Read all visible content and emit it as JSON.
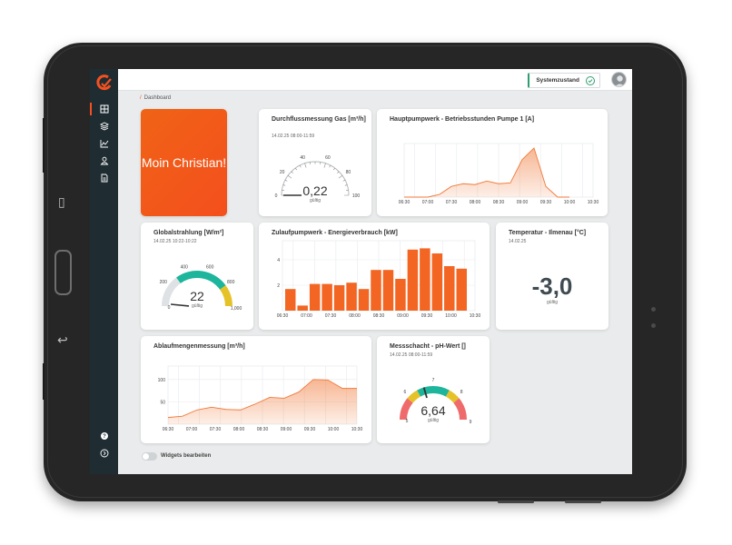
{
  "header": {
    "system_status": "Systemzustand"
  },
  "breadcrumb": {
    "label": "Dashboard"
  },
  "welcome": {
    "text": "Moin Christian!"
  },
  "gas": {
    "title": "Durchflussmessung Gas [m³/h]",
    "time": "14.02.25 08:00-11:59",
    "value": "0,22",
    "valid": "gültig",
    "ticks": [
      "0",
      "20",
      "40",
      "60",
      "80",
      "100"
    ]
  },
  "pump_hours": {
    "title": "Hauptpumpwerk - Betriebsstunden Pumpe 1 [A]",
    "x_ticks": [
      "06:30",
      "07:00",
      "07:30",
      "08:00",
      "08:30",
      "09:00",
      "09:30",
      "10:00",
      "10:30"
    ]
  },
  "global_radiation": {
    "title": "Globalstrahlung [W/m²]",
    "time": "14.02.25 10:22-10:22",
    "value": "22",
    "valid": "gültig",
    "ticks": [
      "0",
      "200",
      "400",
      "600",
      "800",
      "1,000"
    ]
  },
  "energy": {
    "title": "Zulaufpumpwerk - Energieverbrauch [kW]",
    "y_ticks": [
      "2",
      "4"
    ],
    "x_ticks": [
      "06:30",
      "07:00",
      "07:30",
      "08:00",
      "08:30",
      "09:00",
      "09:30",
      "10:00",
      "10:30"
    ]
  },
  "temperature": {
    "title": "Temperatur - Ilmenau [°C]",
    "time": "14.02.25",
    "value": "-3,0",
    "valid": "gültig"
  },
  "outflow": {
    "title": "Ablaufmengenmessung [m³/h]",
    "y_ticks": [
      "50",
      "100"
    ],
    "x_ticks": [
      "06:30",
      "07:00",
      "07:30",
      "08:00",
      "08:30",
      "09:00",
      "09:30",
      "10:00",
      "10:30"
    ]
  },
  "ph": {
    "title": "Messschacht - pH-Wert []",
    "time": "14.02.25 08:00-11:59",
    "value": "6,64",
    "valid": "gültig",
    "ticks": [
      "5",
      "6",
      "7",
      "8",
      "9"
    ]
  },
  "footer": {
    "edit_widgets": "Widgets bearbeiten"
  },
  "chart_data": [
    {
      "type": "area",
      "title": "Hauptpumpwerk - Betriebsstunden Pumpe 1 [A]",
      "x": [
        "06:30",
        "06:45",
        "07:00",
        "07:15",
        "07:30",
        "07:45",
        "08:00",
        "08:15",
        "08:30",
        "08:45",
        "09:00",
        "09:15",
        "09:30",
        "09:45",
        "10:00"
      ],
      "values": [
        0,
        0,
        0,
        0.3,
        1.2,
        1.5,
        1.4,
        1.8,
        1.5,
        1.6,
        4.2,
        5.5,
        1.2,
        0,
        0
      ],
      "ylim": [
        0,
        6
      ]
    },
    {
      "type": "bar",
      "title": "Zulaufpumpwerk - Energieverbrauch [kW]",
      "values": [
        1.7,
        0.4,
        2.1,
        2.1,
        2.0,
        2.2,
        1.7,
        3.2,
        3.2,
        2.5,
        4.8,
        4.9,
        4.5,
        3.5,
        3.3
      ],
      "ylim": [
        0,
        5.5
      ]
    },
    {
      "type": "area",
      "title": "Ablaufmengenmessung [m³/h]",
      "values": [
        15,
        18,
        32,
        38,
        33,
        32,
        45,
        60,
        58,
        72,
        100,
        99,
        80,
        80
      ],
      "ylim": [
        0,
        130
      ]
    },
    {
      "type": "gauge",
      "title": "Durchflussmessung Gas [m³/h]",
      "value": 0.22,
      "range": [
        0,
        100
      ]
    },
    {
      "type": "gauge",
      "title": "Globalstrahlung [W/m²]",
      "value": 22,
      "range": [
        0,
        1000
      ]
    },
    {
      "type": "gauge",
      "title": "Messschacht - pH-Wert []",
      "value": 6.64,
      "range": [
        5,
        9
      ]
    }
  ],
  "colors": {
    "accent": "#f4511e",
    "sidebar": "#1f2d33",
    "ok": "#2e9e6e",
    "teal": "#1db59b",
    "yellow": "#e6c229",
    "red": "#ef6b6b"
  }
}
